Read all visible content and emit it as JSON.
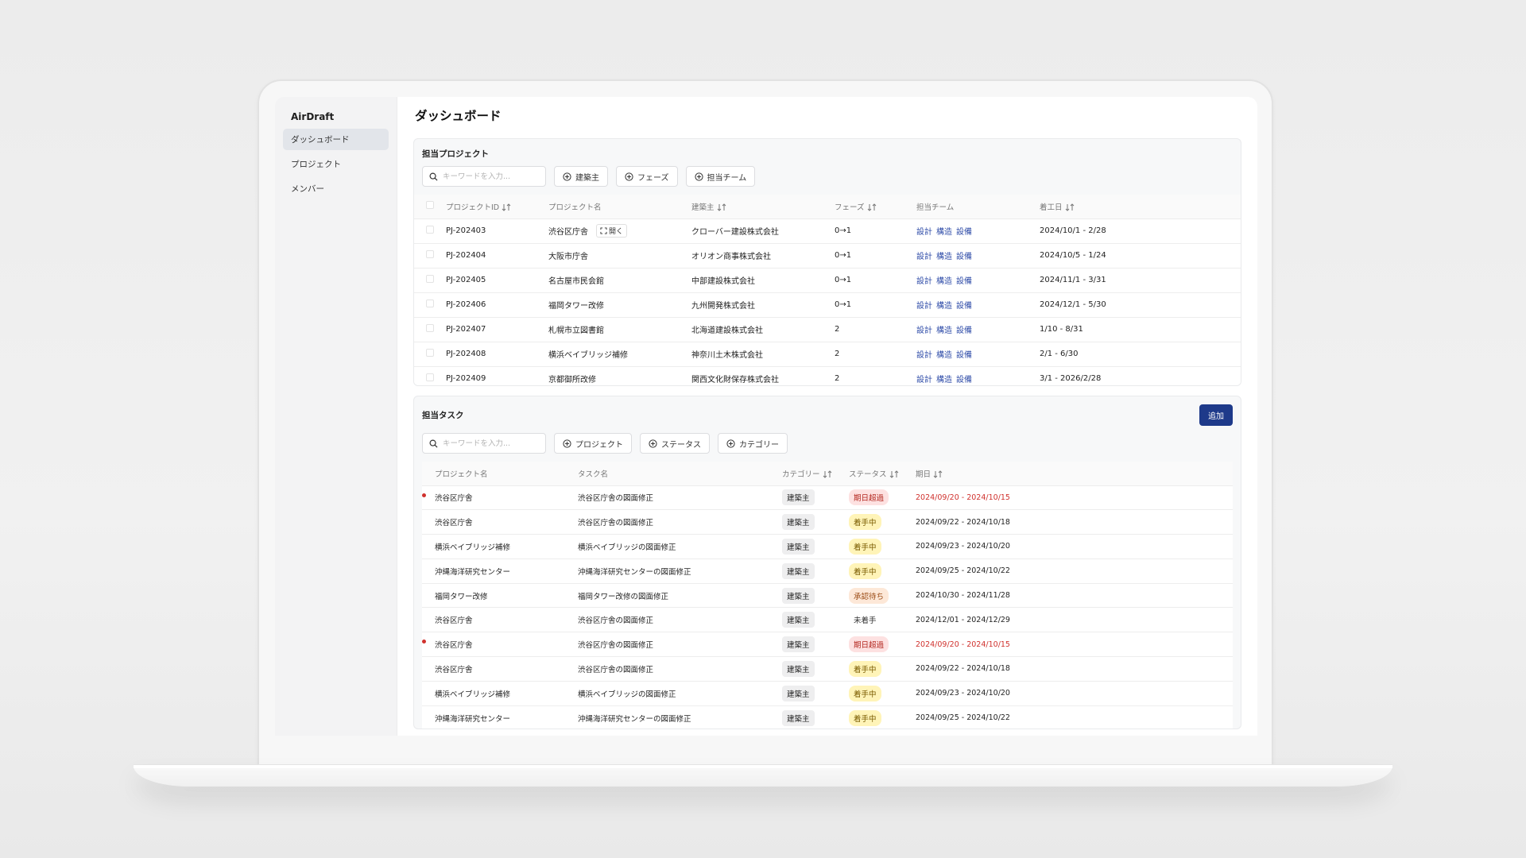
{
  "app": {
    "name": "AirDraft"
  },
  "sidebar": {
    "items": [
      {
        "label": "ダッシュボード",
        "active": true
      },
      {
        "label": "プロジェクト",
        "active": false
      },
      {
        "label": "メンバー",
        "active": false
      }
    ]
  },
  "page": {
    "title": "ダッシュボード"
  },
  "projects": {
    "title": "担当プロジェクト",
    "search_placeholder": "キーワードを入力...",
    "filters": [
      "建築主",
      "フェーズ",
      "担当チーム"
    ],
    "columns": [
      "プロジェクトID",
      "プロジェクト名",
      "建築主",
      "フェーズ",
      "担当チーム",
      "着工日"
    ],
    "open_label": "開く",
    "rows": [
      {
        "id": "PJ-202403",
        "name": "渋谷区庁舎",
        "owner": "クローバー建設株式会社",
        "phase": "0→1",
        "team": [
          "設計",
          "構造",
          "設備"
        ],
        "start": "2024/10/1 - 2/28"
      },
      {
        "id": "PJ-202404",
        "name": "大阪市庁舎",
        "owner": "オリオン商事株式会社",
        "phase": "0→1",
        "team": [
          "設計",
          "構造",
          "設備"
        ],
        "start": "2024/10/5 - 1/24"
      },
      {
        "id": "PJ-202405",
        "name": "名古屋市民会館",
        "owner": "中部建設株式会社",
        "phase": "0→1",
        "team": [
          "設計",
          "構造",
          "設備"
        ],
        "start": "2024/11/1 - 3/31"
      },
      {
        "id": "PJ-202406",
        "name": "福岡タワー改修",
        "owner": "九州開発株式会社",
        "phase": "0→1",
        "team": [
          "設計",
          "構造",
          "設備"
        ],
        "start": "2024/12/1 - 5/30"
      },
      {
        "id": "PJ-202407",
        "name": "札幌市立図書館",
        "owner": "北海道建設株式会社",
        "phase": "2",
        "team": [
          "設計",
          "構造",
          "設備"
        ],
        "start": "1/10 - 8/31"
      },
      {
        "id": "PJ-202408",
        "name": "横浜ベイブリッジ補修",
        "owner": "神奈川土木株式会社",
        "phase": "2",
        "team": [
          "設計",
          "構造",
          "設備"
        ],
        "start": "2/1 - 6/30"
      },
      {
        "id": "PJ-202409",
        "name": "京都御所改修",
        "owner": "関西文化財保存株式会社",
        "phase": "2",
        "team": [
          "設計",
          "構造",
          "設備"
        ],
        "start": "3/1 - 2026/2/28"
      }
    ]
  },
  "tasks": {
    "title": "担当タスク",
    "add_label": "追加",
    "search_placeholder": "キーワードを入力...",
    "filters": [
      "プロジェクト",
      "ステータス",
      "カテゴリー"
    ],
    "columns": [
      "プロジェクト名",
      "タスク名",
      "カテゴリー",
      "ステータス",
      "期日"
    ],
    "rows": [
      {
        "flag": true,
        "project": "渋谷区庁舎",
        "task": "渋谷区庁舎の図面修正",
        "category": "建築主",
        "status": "期日超過",
        "status_type": "overdue",
        "due": "2024/09/20 - 2024/10/15"
      },
      {
        "flag": false,
        "project": "渋谷区庁舎",
        "task": "渋谷区庁舎の図面修正",
        "category": "建築主",
        "status": "着手中",
        "status_type": "progress",
        "due": "2024/09/22 - 2024/10/18"
      },
      {
        "flag": false,
        "project": "横浜ベイブリッジ補修",
        "task": "横浜ベイブリッジの図面修正",
        "category": "建築主",
        "status": "着手中",
        "status_type": "progress",
        "due": "2024/09/23 - 2024/10/20"
      },
      {
        "flag": false,
        "project": "沖縄海洋研究センター",
        "task": "沖縄海洋研究センターの図面修正",
        "category": "建築主",
        "status": "着手中",
        "status_type": "progress",
        "due": "2024/09/25 - 2024/10/22"
      },
      {
        "flag": false,
        "project": "福岡タワー改修",
        "task": "福岡タワー改修の図面修正",
        "category": "建築主",
        "status": "承認待ち",
        "status_type": "approval",
        "due": "2024/10/30 - 2024/11/28"
      },
      {
        "flag": false,
        "project": "渋谷区庁舎",
        "task": "渋谷区庁舎の図面修正",
        "category": "建築主",
        "status": "未着手",
        "status_type": "notstarted",
        "due": "2024/12/01 - 2024/12/29"
      },
      {
        "flag": true,
        "project": "渋谷区庁舎",
        "task": "渋谷区庁舎の図面修正",
        "category": "建築主",
        "status": "期日超過",
        "status_type": "overdue",
        "due": "2024/09/20 - 2024/10/15"
      },
      {
        "flag": false,
        "project": "渋谷区庁舎",
        "task": "渋谷区庁舎の図面修正",
        "category": "建築主",
        "status": "着手中",
        "status_type": "progress",
        "due": "2024/09/22 - 2024/10/18"
      },
      {
        "flag": false,
        "project": "横浜ベイブリッジ補修",
        "task": "横浜ベイブリッジの図面修正",
        "category": "建築主",
        "status": "着手中",
        "status_type": "progress",
        "due": "2024/09/23 - 2024/10/20"
      },
      {
        "flag": false,
        "project": "沖縄海洋研究センター",
        "task": "沖縄海洋研究センターの図面修正",
        "category": "建築主",
        "status": "着手中",
        "status_type": "progress",
        "due": "2024/09/25 - 2024/10/22"
      }
    ]
  },
  "icons": {
    "search": "search-icon",
    "add": "plus-circle-icon",
    "sort": "sort-icon",
    "open": "expand-icon"
  },
  "colors": {
    "accent": "#1e3a8a",
    "link": "#2f4ca8",
    "overdue": "#d0312d"
  }
}
